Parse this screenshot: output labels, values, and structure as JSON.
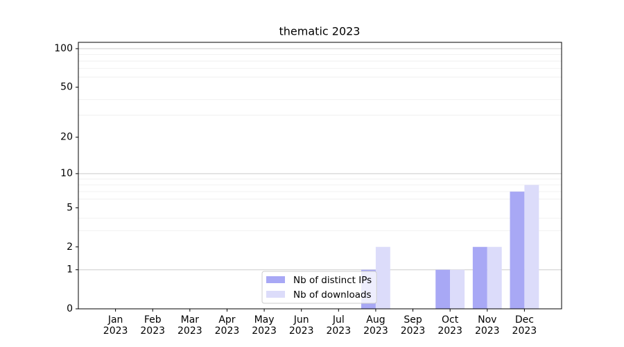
{
  "chart_data": {
    "type": "bar",
    "title": "thematic 2023",
    "categories": [
      "Jan\n2023",
      "Feb\n2023",
      "Mar\n2023",
      "Apr\n2023",
      "May\n2023",
      "Jun\n2023",
      "Jul\n2023",
      "Aug\n2023",
      "Sep\n2023",
      "Oct\n2023",
      "Nov\n2023",
      "Dec\n2023"
    ],
    "series": [
      {
        "name": "Nb of distinct IPs",
        "color": "#a8a8f5",
        "values": [
          0,
          0,
          0,
          0,
          0,
          0,
          0,
          1,
          0,
          1,
          2,
          7
        ]
      },
      {
        "name": "Nb of downloads",
        "color": "#dcdcfa",
        "values": [
          0,
          0,
          0,
          0,
          0,
          0,
          0,
          2,
          0,
          1,
          2,
          8
        ]
      }
    ],
    "yscale": "log1p",
    "ylim": [
      0,
      112
    ],
    "yticks": [
      0,
      1,
      2,
      5,
      10,
      20,
      50,
      100
    ],
    "major_grid": [
      1,
      10,
      100
    ],
    "minor_grid": [
      3,
      4,
      6,
      7,
      8,
      9,
      30,
      40,
      60,
      70,
      80,
      90
    ],
    "legend": "lower center"
  }
}
